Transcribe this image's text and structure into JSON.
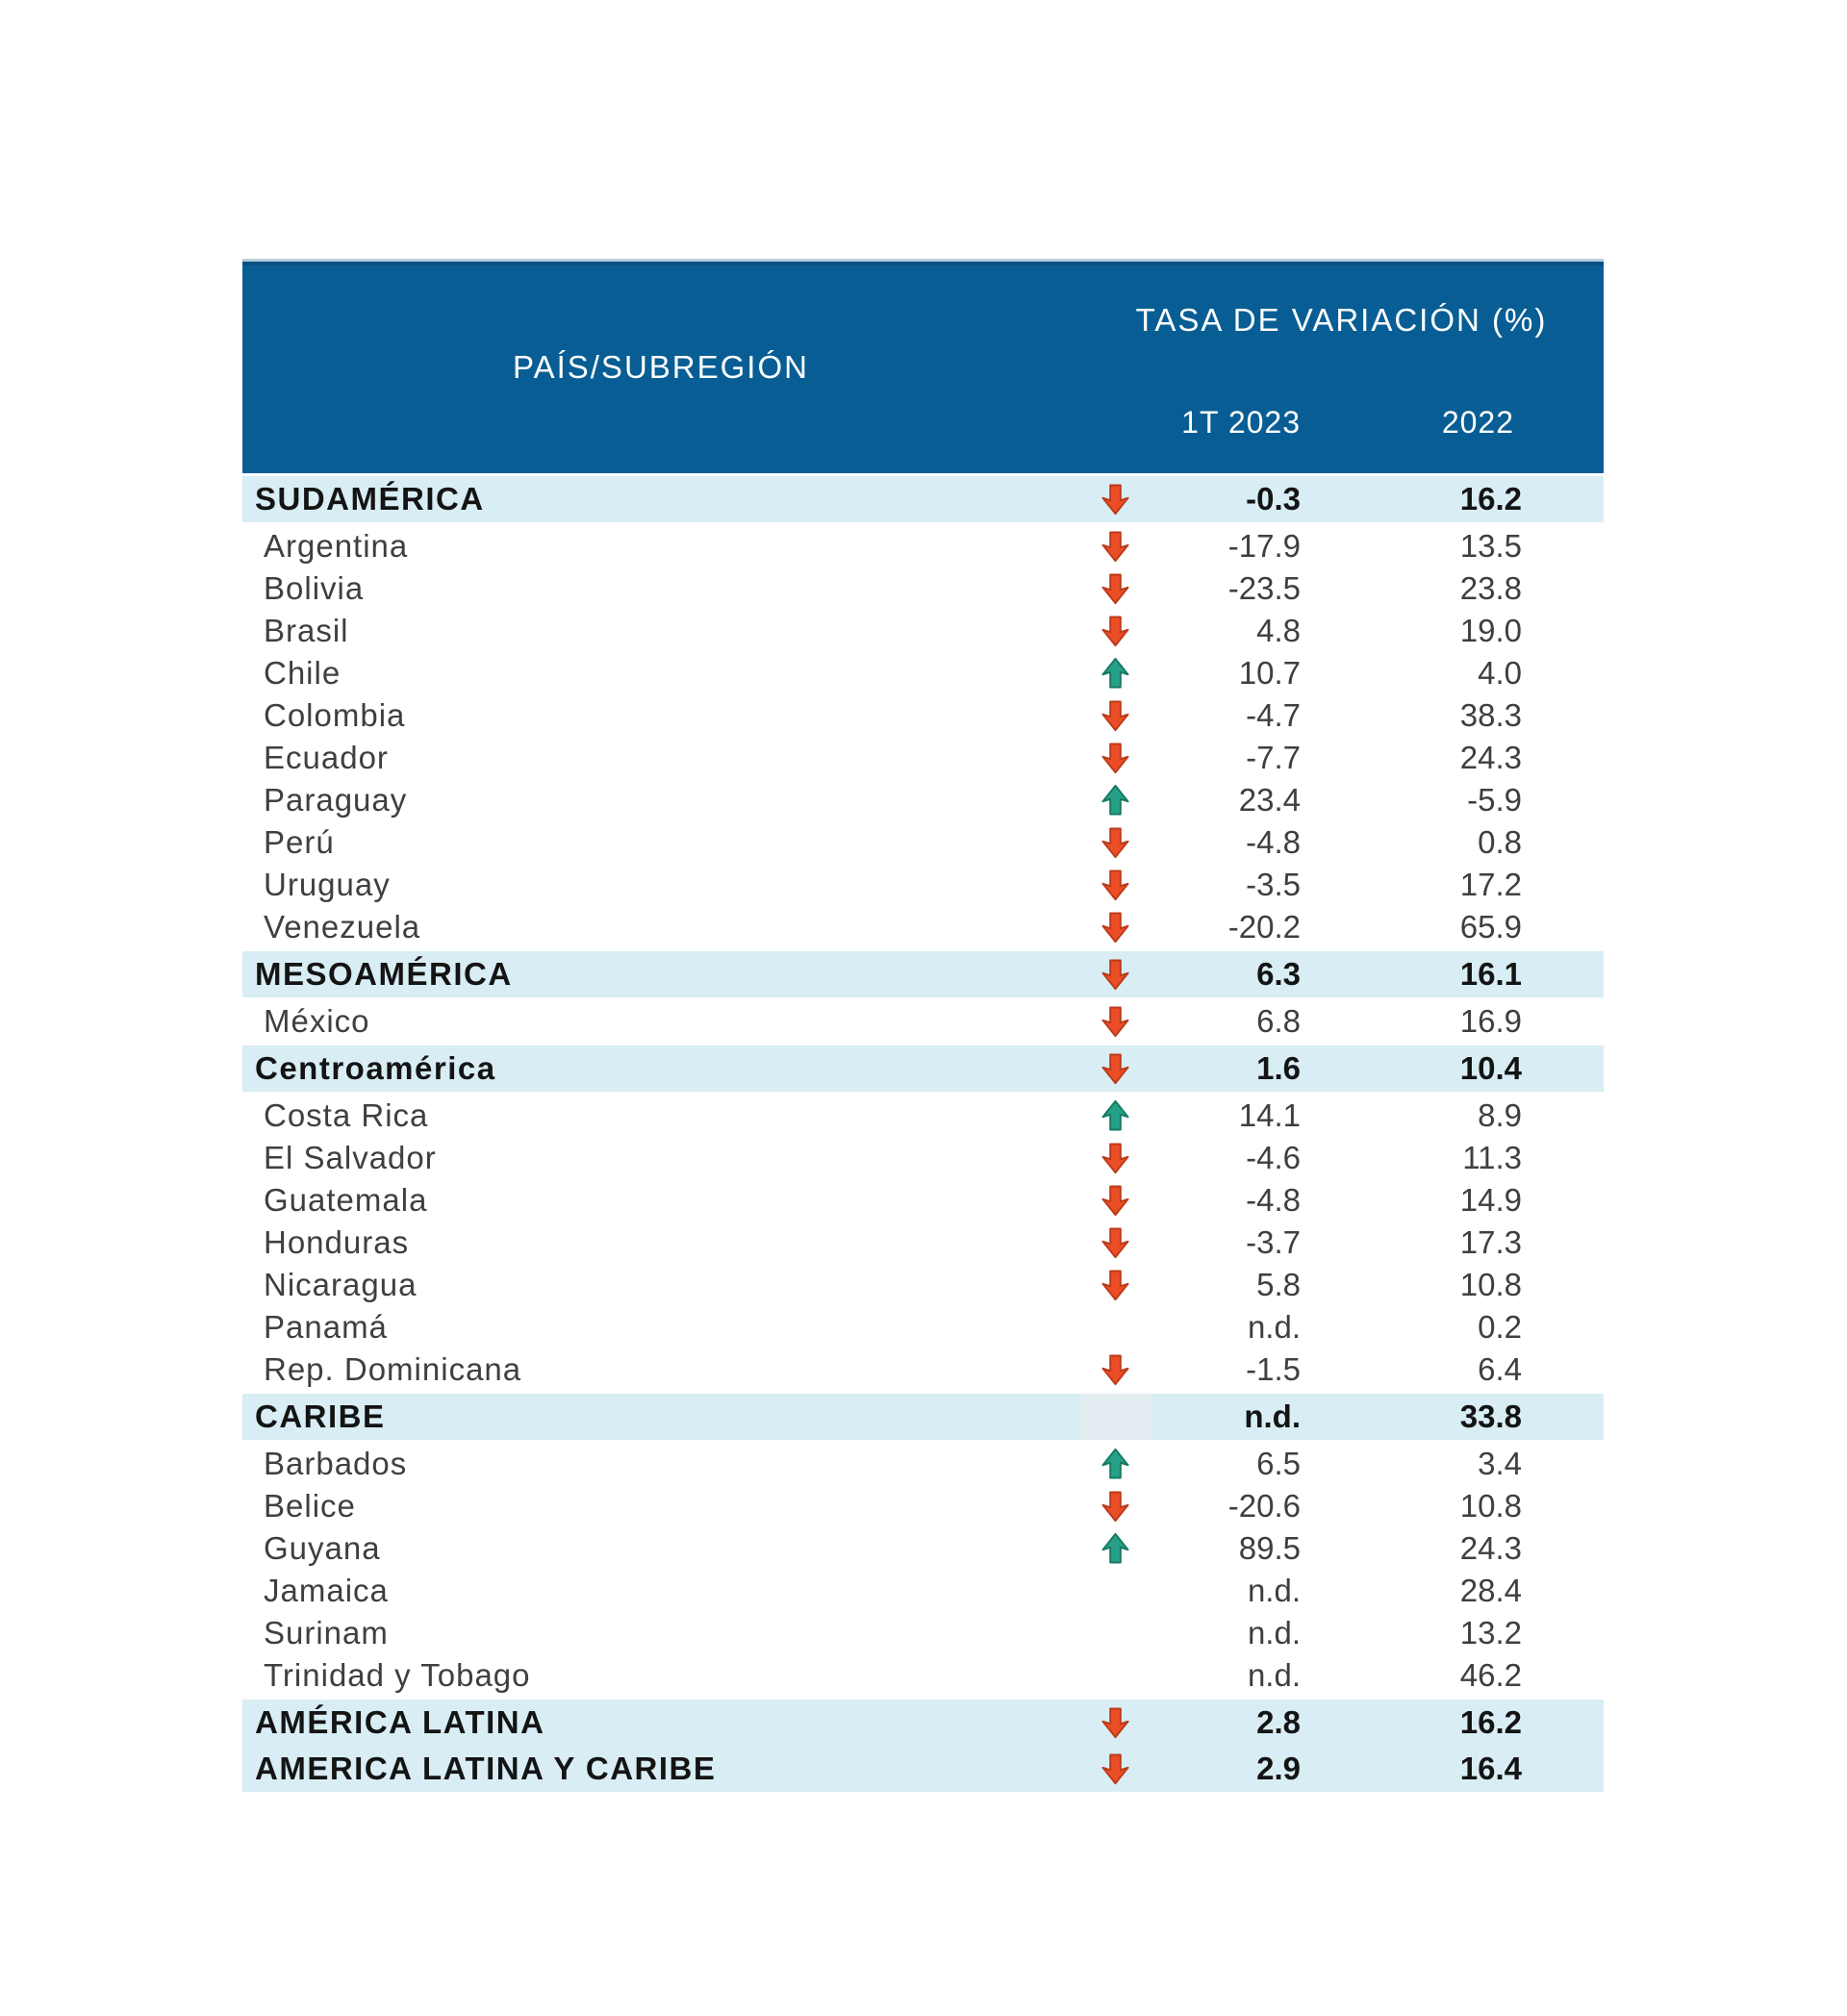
{
  "table": {
    "header": {
      "col_pais": "PAÍS/SUBREGIÓN",
      "col_tasa": "TASA DE VARIACIÓN (%)",
      "col_1t2023": "1T 2023",
      "col_2022": "2022"
    },
    "colors": {
      "header_bg": "#085E94",
      "header_text": "#FFFFFF",
      "band_bg": "#D8EDF4",
      "text_dark": "#141414",
      "text_country": "#3F3F3F",
      "down_arrow": "#EB4D26",
      "down_arrow_outline": "#BC3A18",
      "up_arrow": "#27A089",
      "up_arrow_outline": "#147A62"
    }
  },
  "chart_data": {
    "type": "table",
    "title": "TASA DE VARIACIÓN (%)",
    "columns": [
      "PAÍS/SUBREGIÓN",
      "Tendencia",
      "1T 2023",
      "2022"
    ],
    "rows": [
      {
        "label": "SUDAMÉRICA",
        "level": "region",
        "trend": "down",
        "t1_2023": "-0.3",
        "y2022": "16.2"
      },
      {
        "label": "Argentina",
        "level": "country",
        "trend": "down",
        "t1_2023": "-17.9",
        "y2022": "13.5"
      },
      {
        "label": "Bolivia",
        "level": "country",
        "trend": "down",
        "t1_2023": "-23.5",
        "y2022": "23.8"
      },
      {
        "label": "Brasil",
        "level": "country",
        "trend": "down",
        "t1_2023": "4.8",
        "y2022": "19.0"
      },
      {
        "label": "Chile",
        "level": "country",
        "trend": "up",
        "t1_2023": "10.7",
        "y2022": "4.0"
      },
      {
        "label": "Colombia",
        "level": "country",
        "trend": "down",
        "t1_2023": "-4.7",
        "y2022": "38.3"
      },
      {
        "label": "Ecuador",
        "level": "country",
        "trend": "down",
        "t1_2023": "-7.7",
        "y2022": "24.3"
      },
      {
        "label": "Paraguay",
        "level": "country",
        "trend": "up",
        "t1_2023": "23.4",
        "y2022": "-5.9"
      },
      {
        "label": "Perú",
        "level": "country",
        "trend": "down",
        "t1_2023": "-4.8",
        "y2022": "0.8"
      },
      {
        "label": "Uruguay",
        "level": "country",
        "trend": "down",
        "t1_2023": "-3.5",
        "y2022": "17.2"
      },
      {
        "label": "Venezuela",
        "level": "country",
        "trend": "down",
        "t1_2023": "-20.2",
        "y2022": "65.9"
      },
      {
        "label": "MESOAMÉRICA",
        "level": "region",
        "trend": "down",
        "t1_2023": "6.3",
        "y2022": "16.1"
      },
      {
        "label": "México",
        "level": "country",
        "trend": "down",
        "t1_2023": "6.8",
        "y2022": "16.9"
      },
      {
        "label": "Centroamérica",
        "level": "region",
        "trend": "down",
        "t1_2023": "1.6",
        "y2022": "10.4"
      },
      {
        "label": "Costa Rica",
        "level": "country",
        "trend": "up",
        "t1_2023": "14.1",
        "y2022": "8.9"
      },
      {
        "label": "El Salvador",
        "level": "country",
        "trend": "down",
        "t1_2023": "-4.6",
        "y2022": "11.3"
      },
      {
        "label": "Guatemala",
        "level": "country",
        "trend": "down",
        "t1_2023": "-4.8",
        "y2022": "14.9"
      },
      {
        "label": "Honduras",
        "level": "country",
        "trend": "down",
        "t1_2023": "-3.7",
        "y2022": "17.3"
      },
      {
        "label": "Nicaragua",
        "level": "country",
        "trend": "down",
        "t1_2023": "5.8",
        "y2022": "10.8"
      },
      {
        "label": "Panamá",
        "level": "country",
        "trend": "none",
        "t1_2023": "n.d.",
        "y2022": "0.2"
      },
      {
        "label": "Rep. Dominicana",
        "level": "country",
        "trend": "down",
        "t1_2023": "-1.5",
        "y2022": "6.4"
      },
      {
        "label": "CARIBE",
        "level": "region",
        "trend": "ghost",
        "t1_2023": "n.d.",
        "y2022": "33.8"
      },
      {
        "label": "Barbados",
        "level": "country",
        "trend": "up",
        "t1_2023": "6.5",
        "y2022": "3.4"
      },
      {
        "label": "Belice",
        "level": "country",
        "trend": "down",
        "t1_2023": "-20.6",
        "y2022": "10.8"
      },
      {
        "label": "Guyana",
        "level": "country",
        "trend": "up",
        "t1_2023": "89.5",
        "y2022": "24.3"
      },
      {
        "label": "Jamaica",
        "level": "country",
        "trend": "none",
        "t1_2023": "n.d.",
        "y2022": "28.4"
      },
      {
        "label": "Surinam",
        "level": "country",
        "trend": "none",
        "t1_2023": "n.d.",
        "y2022": "13.2"
      },
      {
        "label": "Trinidad y Tobago",
        "level": "country",
        "trend": "none",
        "t1_2023": "n.d.",
        "y2022": "46.2"
      },
      {
        "label": "AMÉRICA LATINA",
        "level": "region",
        "trend": "down",
        "t1_2023": "2.8",
        "y2022": "16.2",
        "joined_with_next": true
      },
      {
        "label": "AMERICA LATINA Y CARIBE",
        "level": "region",
        "trend": "down",
        "t1_2023": "2.9",
        "y2022": "16.4"
      }
    ]
  }
}
